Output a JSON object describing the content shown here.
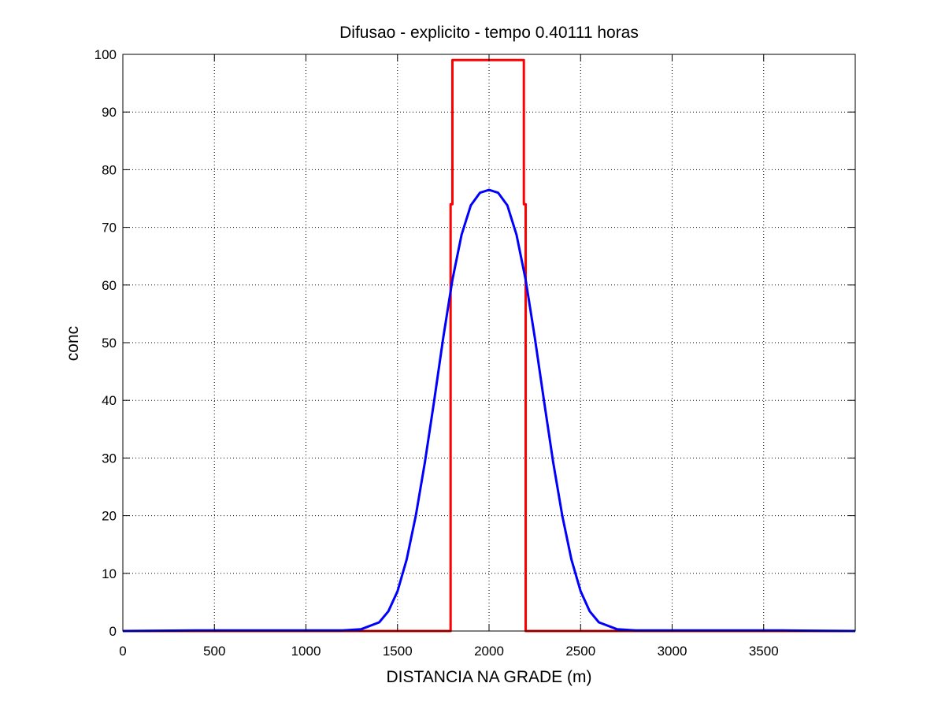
{
  "chart_data": {
    "type": "line",
    "title": "Difusao - explicito - tempo 0.40111 horas",
    "xlabel": "DISTANCIA NA GRADE (m)",
    "ylabel": "conc",
    "xlim": [
      0,
      4000
    ],
    "ylim": [
      0,
      100
    ],
    "xticks": [
      0,
      500,
      1000,
      1500,
      2000,
      2500,
      3000,
      3500
    ],
    "yticks": [
      0,
      10,
      20,
      30,
      40,
      50,
      60,
      70,
      80,
      90,
      100
    ],
    "grid": true,
    "series": [
      {
        "color": "#ff0000",
        "x": [
          0,
          1790,
          1790,
          1800,
          1800,
          2190,
          2190,
          2200,
          2200,
          4000
        ],
        "y": [
          0,
          0,
          74,
          74,
          99,
          99,
          74,
          74,
          0,
          0
        ]
      },
      {
        "color": "#0000ff",
        "x": [
          0,
          400,
          1200,
          1300,
          1400,
          1450,
          1500,
          1550,
          1600,
          1650,
          1700,
          1750,
          1800,
          1850,
          1900,
          1950,
          2000,
          2050,
          2100,
          2150,
          2200,
          2250,
          2300,
          2350,
          2400,
          2450,
          2500,
          2550,
          2600,
          2700,
          2800,
          3600,
          4000
        ],
        "y": [
          0,
          0.1,
          0.1,
          0.3,
          1.5,
          3.4,
          6.9,
          12.4,
          20.0,
          29.3,
          39.9,
          50.9,
          60.9,
          68.7,
          73.8,
          76.0,
          76.5,
          76.0,
          73.8,
          68.7,
          60.9,
          50.9,
          39.9,
          29.3,
          20.0,
          12.4,
          6.9,
          3.4,
          1.5,
          0.3,
          0.1,
          0.1,
          0
        ]
      }
    ]
  }
}
